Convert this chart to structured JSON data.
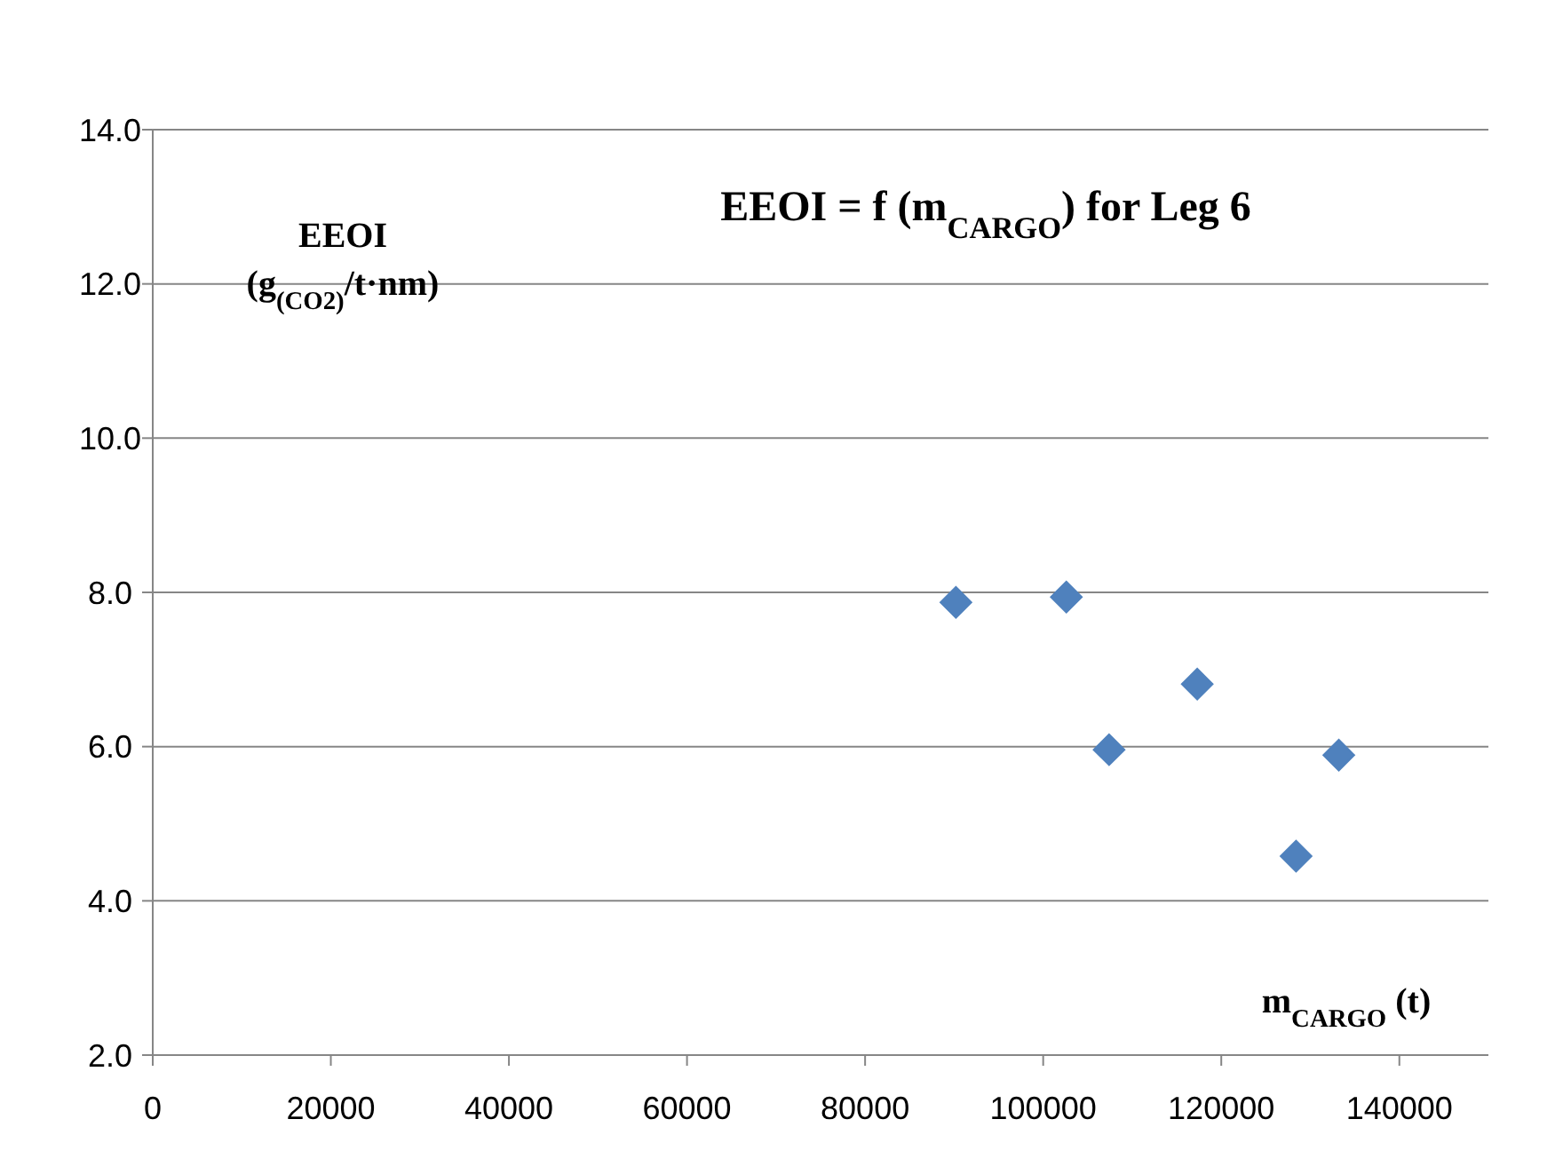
{
  "chart_data": {
    "type": "scatter",
    "title": "EEOI = f (m$_{CARGO}$) for Leg 6",
    "ylabel": "EEOI\n(g$_{(CO2)}$/t·nm)",
    "xlabel": "m$_{CARGO}$ (t)",
    "x": [
      90200,
      102600,
      107400,
      117300,
      128400,
      133200
    ],
    "values": [
      7.87,
      7.94,
      5.96,
      6.81,
      4.58,
      5.89
    ],
    "color": "#4f81bd",
    "marker": "diamond",
    "xlim": [
      0,
      150000
    ],
    "xticks": [
      0,
      20000,
      40000,
      60000,
      80000,
      100000,
      120000,
      140000
    ],
    "ylim": [
      2,
      14
    ],
    "yticks": [
      {
        "value": 2,
        "label": "2.0"
      },
      {
        "value": 4,
        "label": "4.0"
      },
      {
        "value": 6,
        "label": "6.0"
      },
      {
        "value": 8,
        "label": "8.0"
      },
      {
        "value": 10,
        "label": "10.0"
      },
      {
        "value": 12,
        "label": "12.0"
      },
      {
        "value": 14,
        "label": "14.0"
      }
    ],
    "grid": "y"
  }
}
